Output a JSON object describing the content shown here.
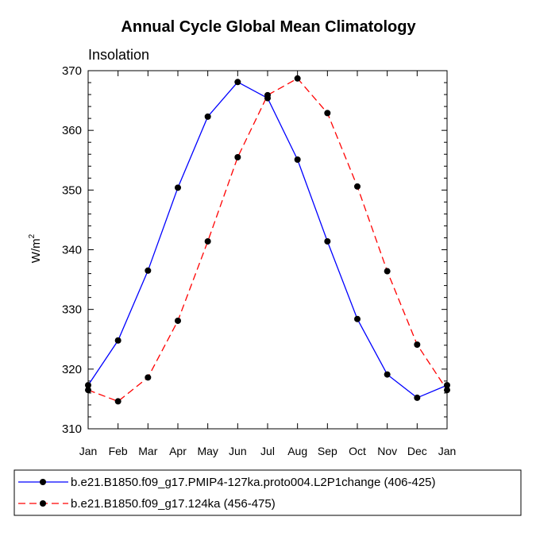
{
  "chart_data": {
    "type": "line",
    "title": "Annual Cycle Global Mean Climatology",
    "subtitle": "Insolation",
    "ylabel": "W/m",
    "ylabel_superscript": "2",
    "xlabel": "",
    "categories": [
      "Jan",
      "Feb",
      "Mar",
      "Apr",
      "May",
      "Jun",
      "Jul",
      "Aug",
      "Sep",
      "Oct",
      "Nov",
      "Dec",
      "Jan"
    ],
    "ylim": [
      310,
      370
    ],
    "yticks": [
      310,
      320,
      330,
      340,
      350,
      360,
      370
    ],
    "series": [
      {
        "name": "b.e21.B1850.f09_g17.PMIP4-127ka.proto004.L2P1change (406-425)",
        "color": "#0000ff",
        "dash": "solid",
        "values": [
          317.3,
          324.8,
          336.5,
          350.4,
          362.3,
          368.1,
          365.4,
          355.1,
          341.4,
          328.4,
          319.1,
          315.2,
          317.3
        ]
      },
      {
        "name": "b.e21.B1850.f09_g17.124ka (456-475)",
        "color": "#ff0000",
        "dash": "dashed",
        "values": [
          316.5,
          314.6,
          318.6,
          328.1,
          341.4,
          355.5,
          365.9,
          368.7,
          362.9,
          350.6,
          336.4,
          324.1,
          316.5
        ]
      }
    ]
  }
}
